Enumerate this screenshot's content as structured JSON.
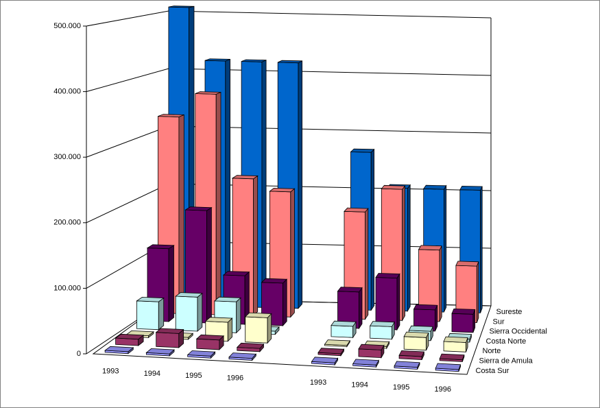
{
  "chart_data": {
    "type": "bar3d",
    "categories": [
      "1993",
      "1994",
      "1995",
      "1996",
      null,
      "1993",
      "1994",
      "1995",
      "1996"
    ],
    "series": [
      {
        "name": "Costa Sur",
        "color": "#9999ff",
        "values": [
          3000,
          3000,
          3000,
          3000,
          null,
          3000,
          3000,
          3000,
          3000
        ]
      },
      {
        "name": "Sierra de Amula",
        "color": "#993366",
        "values": [
          10000,
          22000,
          15000,
          5000,
          null,
          3000,
          12000,
          5000,
          3000
        ]
      },
      {
        "name": "Norte",
        "color": "#ffffcc",
        "values": [
          3000,
          3000,
          30000,
          40000,
          null,
          2000,
          3000,
          20000,
          15000
        ]
      },
      {
        "name": "Costa Norte",
        "color": "#ccffff",
        "values": [
          45000,
          55000,
          50000,
          5000,
          null,
          18000,
          20000,
          15000,
          5000
        ]
      },
      {
        "name": "Sierra Occidental",
        "color": "#660066",
        "values": [
          120000,
          185000,
          80000,
          70000,
          null,
          60000,
          85000,
          35000,
          30000
        ]
      },
      {
        "name": "Sur",
        "color": "#ff8080",
        "values": [
          330000,
          370000,
          230000,
          210000,
          null,
          180000,
          220000,
          120000,
          95000
        ]
      },
      {
        "name": "Sureste",
        "color": "#0066cc",
        "values": [
          510000,
          420000,
          420000,
          420000,
          null,
          270000,
          210000,
          210000,
          210000
        ]
      }
    ],
    "ylim": [
      0,
      500000
    ],
    "yticks": [
      0,
      {
        "value": 100000,
        "label": "100.000"
      },
      {
        "value": 200000,
        "label": "200.000"
      },
      {
        "value": 300000,
        "label": "300.000"
      },
      {
        "value": 400000,
        "label": "400.000"
      },
      {
        "value": 500000,
        "label": "500.000"
      }
    ],
    "grid": true
  }
}
